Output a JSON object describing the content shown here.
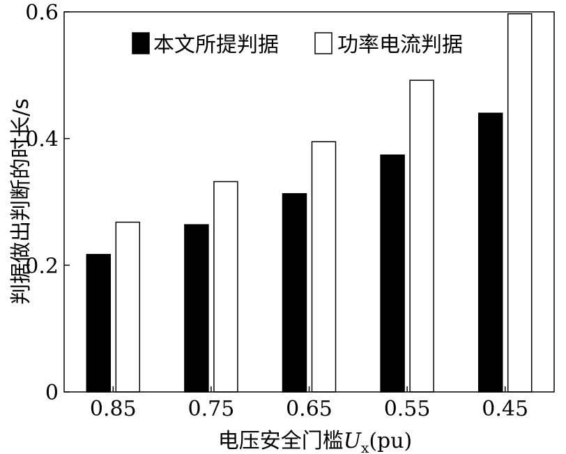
{
  "chart_data": {
    "type": "bar",
    "categories": [
      "0.85",
      "0.75",
      "0.65",
      "0.55",
      "0.45"
    ],
    "series": [
      {
        "name": "本文所提判据",
        "color": "#000000",
        "values": [
          0.217,
          0.264,
          0.313,
          0.374,
          0.44
        ]
      },
      {
        "name": "功率电流判据",
        "color": "#ffffff",
        "values": [
          0.268,
          0.332,
          0.395,
          0.492,
          0.597
        ]
      }
    ],
    "ylim": [
      0,
      0.6
    ],
    "yticks": [
      "0",
      "0.2",
      "0.4",
      "0.6"
    ],
    "ylabel": "判据做出判断的时长/s",
    "xlabel_main": "电压安全门槛",
    "xlabel_var": "U",
    "xlabel_sub": "x",
    "xlabel_unit": "(pu)",
    "legend_position": "top-right",
    "grid": false
  }
}
